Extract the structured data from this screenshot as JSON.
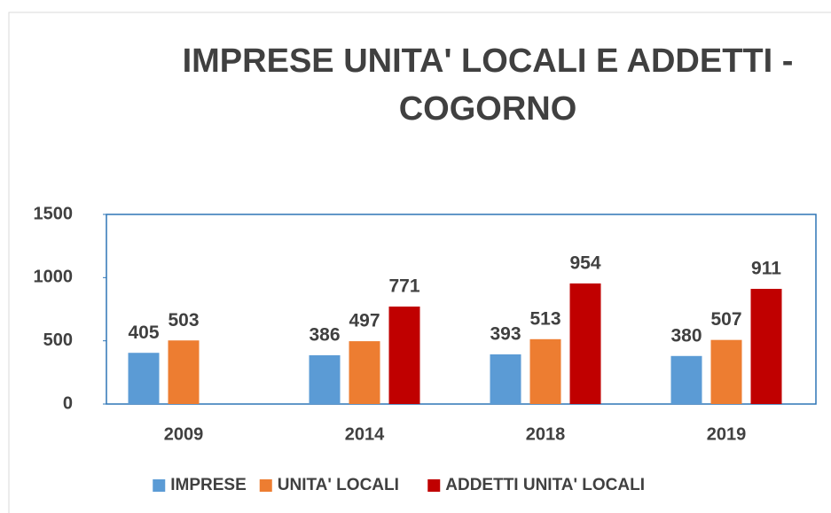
{
  "chart_data": {
    "type": "bar",
    "title": "IMPRESE UNITA' LOCALI E ADDETTI - COGORNO",
    "categories": [
      "2009",
      "2014",
      "2018",
      "2019"
    ],
    "series": [
      {
        "name": "IMPRESE",
        "color": "#5b9bd5",
        "values": [
          405,
          386,
          393,
          380
        ]
      },
      {
        "name": "UNITA' LOCALI",
        "color": "#ed7d31",
        "values": [
          503,
          497,
          513,
          507
        ]
      },
      {
        "name": "ADDETTI UNITA' LOCALI",
        "color": "#c00000",
        "values": [
          null,
          771,
          954,
          911
        ]
      }
    ],
    "ylim": [
      0,
      1500
    ],
    "yticks": [
      0,
      500,
      1000,
      1500
    ],
    "legend": "bottom"
  }
}
